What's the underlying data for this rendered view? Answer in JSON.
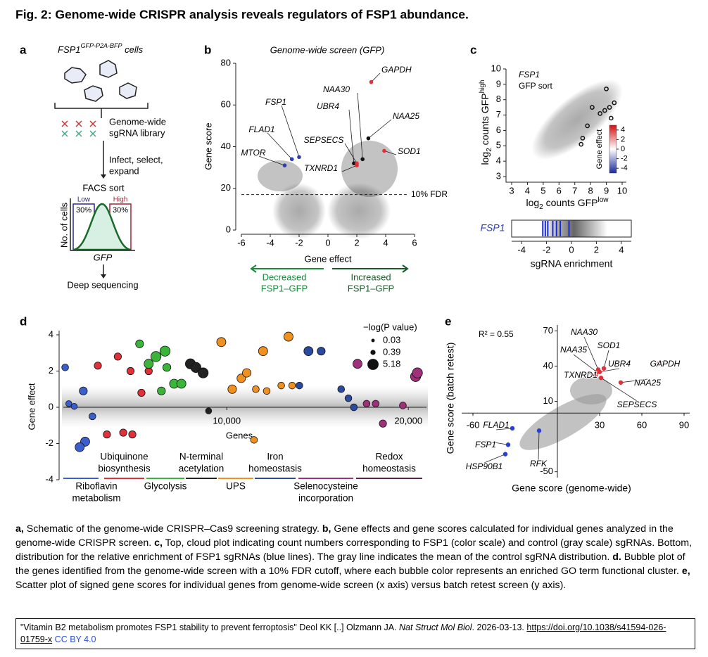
{
  "title": "Fig. 2: Genome-wide CRISPR analysis reveals regulators of FSP1 abundance.",
  "panels": {
    "a": {
      "label": "a",
      "cell_line": "FSP1",
      "cell_tag": "GFP-P2A-BFP",
      "cells": " cells",
      "library": [
        "Genome-wide",
        "sgRNA library"
      ],
      "step": [
        "Infect, select,",
        "expand"
      ],
      "facs": "FACS sort",
      "low": "Low",
      "high": "High",
      "low_pct": "30%",
      "high_pct": "30%",
      "ylabel": "No. of cells",
      "xlabel": "GFP",
      "final": "Deep sequencing"
    },
    "b": {
      "label": "b",
      "title": "Genome-wide screen (GFP)",
      "xlabel": "Gene effect",
      "ylabel": "Gene score",
      "xlim": [
        -6,
        6
      ],
      "ylim": [
        0,
        80
      ],
      "xticks": [
        -6,
        -4,
        -2,
        0,
        2,
        4,
        6
      ],
      "yticks": [
        0,
        20,
        40,
        60,
        80
      ],
      "fdr": 17,
      "fdr_label": "10% FDR",
      "points": [
        {
          "label": "GAPDH",
          "x": 3.0,
          "y": 71,
          "color": "#e0303a"
        },
        {
          "label": "NAA30",
          "x": 2.4,
          "y": 34,
          "color": "#111"
        },
        {
          "label": "UBR4",
          "x": 1.8,
          "y": 32,
          "color": "#111"
        },
        {
          "label": "NAA25",
          "x": 2.8,
          "y": 44,
          "color": "#111"
        },
        {
          "label": "SEPSECS",
          "x": 2.0,
          "y": 32,
          "color": "#e0303a"
        },
        {
          "label": "SOD1",
          "x": 3.9,
          "y": 38,
          "color": "#e0303a"
        },
        {
          "label": "TXNRD1",
          "x": 2.0,
          "y": 31,
          "color": "#e0303a"
        },
        {
          "label": "FSP1",
          "x": -2.0,
          "y": 35,
          "color": "#2a3fb0"
        },
        {
          "label": "FLAD1",
          "x": -2.5,
          "y": 34,
          "color": "#2a3fb0"
        },
        {
          "label": "MTOR",
          "x": -3.0,
          "y": 31,
          "color": "#2a3fb0"
        }
      ],
      "left_arrow": [
        "Decreased",
        "FSP1–GFP"
      ],
      "right_arrow": [
        "Increased",
        "FSP1–GFP"
      ]
    },
    "c": {
      "label": "c",
      "note": [
        "FSP1",
        "GFP sort"
      ],
      "xlim": [
        3,
        10
      ],
      "ylim": [
        3,
        10
      ],
      "xticks": [
        3,
        4,
        5,
        6,
        7,
        8,
        9,
        10
      ],
      "yticks": [
        3,
        4,
        5,
        6,
        7,
        8,
        9,
        10
      ],
      "xlabel": [
        "log",
        "2",
        " counts GFP",
        "low"
      ],
      "ylabel": [
        "log",
        "2",
        " counts GFP",
        "high"
      ],
      "hits": {
        "x": [
          9.0,
          9.5,
          9.2,
          8.9,
          8.1,
          8.6,
          9.3,
          7.8,
          7.5,
          7.4
        ],
        "y": [
          8.7,
          7.8,
          7.5,
          7.3,
          7.5,
          7.1,
          6.8,
          6.3,
          5.5,
          5.1
        ]
      },
      "colorbar": {
        "label": "Gene effect",
        "lim": [
          -5,
          5
        ],
        "ticks": [
          4,
          2,
          0,
          -2,
          -4
        ]
      },
      "strip": {
        "name": "FSP1",
        "xlim": [
          -4.8,
          4.8
        ],
        "xticks": [
          -4,
          -2,
          0,
          2,
          4
        ],
        "xlabel": "sgRNA enrichment",
        "sgrnas": [
          -2.3,
          -2.1,
          -1.9,
          -1.5,
          -1.2,
          -0.9,
          -0.2
        ]
      }
    },
    "d": {
      "label": "d",
      "ylabel": "Gene effect",
      "xlabel": "Genes",
      "xlim": [
        1000,
        21000
      ],
      "ylim": [
        -4,
        4
      ],
      "xticks": [
        {
          "value": 10000,
          "label": "10,000"
        },
        {
          "value": 20000,
          "label": "20,000"
        }
      ],
      "yticks": [
        4,
        2,
        0,
        -2,
        -4
      ],
      "legend": {
        "title": "−log(P value)",
        "values": [
          0.03,
          0.39,
          5.18
        ]
      },
      "clusters": [
        {
          "name": [
            "Riboflavin",
            "metabolism"
          ],
          "color": "#3a5fcd",
          "gene": [
            1100,
            1300,
            1600,
            2100,
            2600,
            2200,
            1900
          ],
          "effect": [
            2.2,
            0.2,
            0.05,
            0.9,
            -0.5,
            -1.9,
            -2.2
          ],
          "size": [
            1.2,
            0.8,
            0.8,
            2,
            1.2,
            3,
            3
          ]
        },
        {
          "name": [
            "Ubiquinone",
            "biosynthesis"
          ],
          "color": "#e0303a",
          "gene": [
            2900,
            4000,
            4700,
            3400,
            4300,
            4800,
            5300,
            5700
          ],
          "effect": [
            2.3,
            2.8,
            2.0,
            -1.5,
            -1.4,
            -1.5,
            0.8,
            2.0
          ],
          "size": [
            1.5,
            1.5,
            1.5,
            1.5,
            1.5,
            1.5,
            1.5,
            1.5
          ]
        },
        {
          "name": [
            "Glycolysis"
          ],
          "color": "#3ab53a",
          "gene": [
            5200,
            5700,
            6100,
            6600,
            6700,
            6400,
            7100,
            7500
          ],
          "effect": [
            3.5,
            2.4,
            2.8,
            3.1,
            2.2,
            0.9,
            1.3,
            1.3
          ],
          "size": [
            2,
            3,
            4,
            4,
            2,
            2,
            3,
            3
          ]
        },
        {
          "name": [
            "N-terminal",
            "acetylation"
          ],
          "color": "#222",
          "gene": [
            8000,
            8300,
            8700,
            9000
          ],
          "effect": [
            2.4,
            2.2,
            1.9,
            -0.2
          ],
          "size": [
            4,
            4,
            4,
            0.8
          ]
        },
        {
          "name": [
            "UPS"
          ],
          "color": "#f0901e",
          "gene": [
            9700,
            10300,
            10800,
            11100,
            11600,
            12000,
            12200,
            13400,
            13000,
            13600,
            11500
          ],
          "effect": [
            3.6,
            1.0,
            1.6,
            1.9,
            1.0,
            3.1,
            0.9,
            3.9,
            1.2,
            1.2,
            -1.8
          ],
          "size": [
            3,
            2.5,
            2.5,
            2.5,
            1.2,
            3,
            1.2,
            3,
            1.2,
            1.2,
            1.2
          ]
        },
        {
          "name": [
            "Iron",
            "homeostasis"
          ],
          "color": "#2a4aa0",
          "gene": [
            14500,
            15200,
            14000,
            16300,
            16700,
            17000
          ],
          "effect": [
            3.1,
            3.1,
            1.2,
            1.0,
            0.5,
            0
          ],
          "size": [
            3,
            2,
            1.2,
            1.2,
            1.2,
            1.2
          ]
        },
        {
          "name": [
            "Selenocysteine",
            "incorporation"
          ],
          "color": "#a0307a",
          "gene": [
            17200,
            17700,
            18200,
            18600,
            19700,
            20400,
            20500
          ],
          "effect": [
            2.4,
            0.2,
            0.2,
            -0.9,
            0.1,
            1.7,
            1.9
          ],
          "size": [
            3,
            1.2,
            1.2,
            1.5,
            1.2,
            4,
            4
          ]
        },
        {
          "name": [
            "Redox",
            "homeostasis"
          ]
        }
      ]
    },
    "e": {
      "label": "e",
      "r2": "R² = 0.55",
      "xlabel": "Gene score (genome-wide)",
      "ylabel": "Gene score (batch retest)",
      "xlim": [
        -68,
        94
      ],
      "ylim": [
        -55,
        75
      ],
      "xticks": [
        -60,
        30,
        60,
        90
      ],
      "yticks": [
        70,
        40,
        10,
        -50
      ],
      "points": [
        {
          "label": "NAA30",
          "x": 29,
          "y": 37,
          "color": "#e0303a"
        },
        {
          "label": "NAA35",
          "x": 28,
          "y": 35,
          "color": "#e0303a"
        },
        {
          "label": "SOD1",
          "x": 33,
          "y": 38,
          "color": "#e0303a"
        },
        {
          "label": "UBR4",
          "x": 30,
          "y": 35,
          "color": "#e0303a"
        },
        {
          "label": "TXNRD1",
          "x": 27,
          "y": 32,
          "color": "#e0303a"
        },
        {
          "label": "GAPDH",
          "x": 72,
          "y": 42,
          "color": "#e0303a"
        },
        {
          "label": "NAA25",
          "x": 45,
          "y": 26,
          "color": "#e0303a"
        },
        {
          "label": "SEPSECS",
          "x": 31,
          "y": 30,
          "color": "#e0303a"
        },
        {
          "label": "FLAD1",
          "x": -32,
          "y": -13,
          "color": "#2a3fd0"
        },
        {
          "label": "FSP1",
          "x": -35,
          "y": -27,
          "color": "#2a3fd0"
        },
        {
          "label": "HSP90B1",
          "x": -37,
          "y": -35,
          "color": "#2a3fd0"
        },
        {
          "label": "RFK",
          "x": -13,
          "y": -15,
          "color": "#2a3fd0"
        }
      ]
    }
  },
  "caption": [
    {
      "label": "a,",
      "text": " Schematic of the genome-wide CRISPR–Cas9 screening strategy. "
    },
    {
      "label": "b,",
      "text": " Gene effects and gene scores calculated for individual genes analyzed in the genome-wide CRISPR screen. "
    },
    {
      "label": "c,",
      "text": " Top, cloud plot indicating count numbers corresponding to FSP1 (color scale) and control (gray scale) sgRNAs. Bottom, distribution for the relative enrichment of FSP1 sgRNAs (blue lines). The gray line indicates the mean of the control sgRNA distribution. "
    },
    {
      "label": "d.",
      "text": " Bubble plot of the genes identified from the genome-wide screen with a 10% FDR cutoff, where each bubble color represents an enriched GO term functional cluster. "
    },
    {
      "label": "e,",
      "text": " Scatter plot of signed gene scores for individual genes from genome-wide screen (x axis) versus batch retest screen (y axis)."
    }
  ],
  "citation": {
    "text": "\"Vitamin B2 metabolism promotes FSP1 stability to prevent ferroptosis\" Deol KK [..] Olzmann JA. ",
    "journal": "Nat Struct Mol Biol",
    "date": ". 2026-03-13. ",
    "doi": "https://doi.org/10.1038/s41594-026-01759-x",
    "license": "CC BY 4.0"
  }
}
